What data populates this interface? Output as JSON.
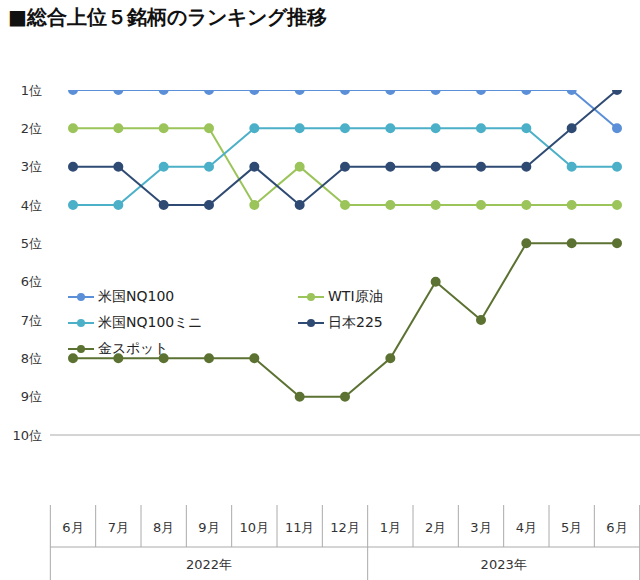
{
  "chart_data": {
    "type": "line",
    "title": "■総合上位５銘柄のランキング推移",
    "categories": [
      "6月",
      "7月",
      "8月",
      "9月",
      "10月",
      "11月",
      "12月",
      "1月",
      "2月",
      "3月",
      "4月",
      "5月",
      "6月"
    ],
    "groups": [
      {
        "label": "2022年",
        "span": 7
      },
      {
        "label": "2023年",
        "span": 6
      }
    ],
    "series": [
      {
        "name": "米国NQ100",
        "color": "#5b8fd8",
        "values": [
          1,
          1,
          1,
          1,
          1,
          1,
          1,
          1,
          1,
          1,
          1,
          1,
          2
        ]
      },
      {
        "name": "WTI原油",
        "color": "#9bc45a",
        "values": [
          2,
          2,
          2,
          2,
          4,
          3,
          4,
          4,
          4,
          4,
          4,
          4,
          4
        ]
      },
      {
        "name": "米国NQ100ミニ",
        "color": "#4bb0c8",
        "values": [
          4,
          4,
          3,
          3,
          2,
          2,
          2,
          2,
          2,
          2,
          2,
          3,
          3
        ]
      },
      {
        "name": "日本225",
        "color": "#2f4b73",
        "values": [
          3,
          3,
          4,
          4,
          3,
          4,
          3,
          3,
          3,
          3,
          3,
          2,
          1
        ]
      },
      {
        "name": "金スポット",
        "color": "#5c7232",
        "values": [
          8,
          8,
          8,
          8,
          8,
          9,
          9,
          8,
          6,
          7,
          5,
          5,
          5
        ]
      }
    ],
    "ylim": [
      10,
      1
    ],
    "yticks": [
      {
        "value": 1,
        "label": "1位"
      },
      {
        "value": 2,
        "label": "2位"
      },
      {
        "value": 3,
        "label": "3位"
      },
      {
        "value": 4,
        "label": "4位"
      },
      {
        "value": 5,
        "label": "5位"
      },
      {
        "value": 6,
        "label": "6位"
      },
      {
        "value": 7,
        "label": "7位"
      },
      {
        "value": 8,
        "label": "8位"
      },
      {
        "value": 9,
        "label": "9位"
      },
      {
        "value": 10,
        "label": "10位"
      }
    ],
    "grid": false,
    "legend": "left",
    "marker": "circle"
  }
}
